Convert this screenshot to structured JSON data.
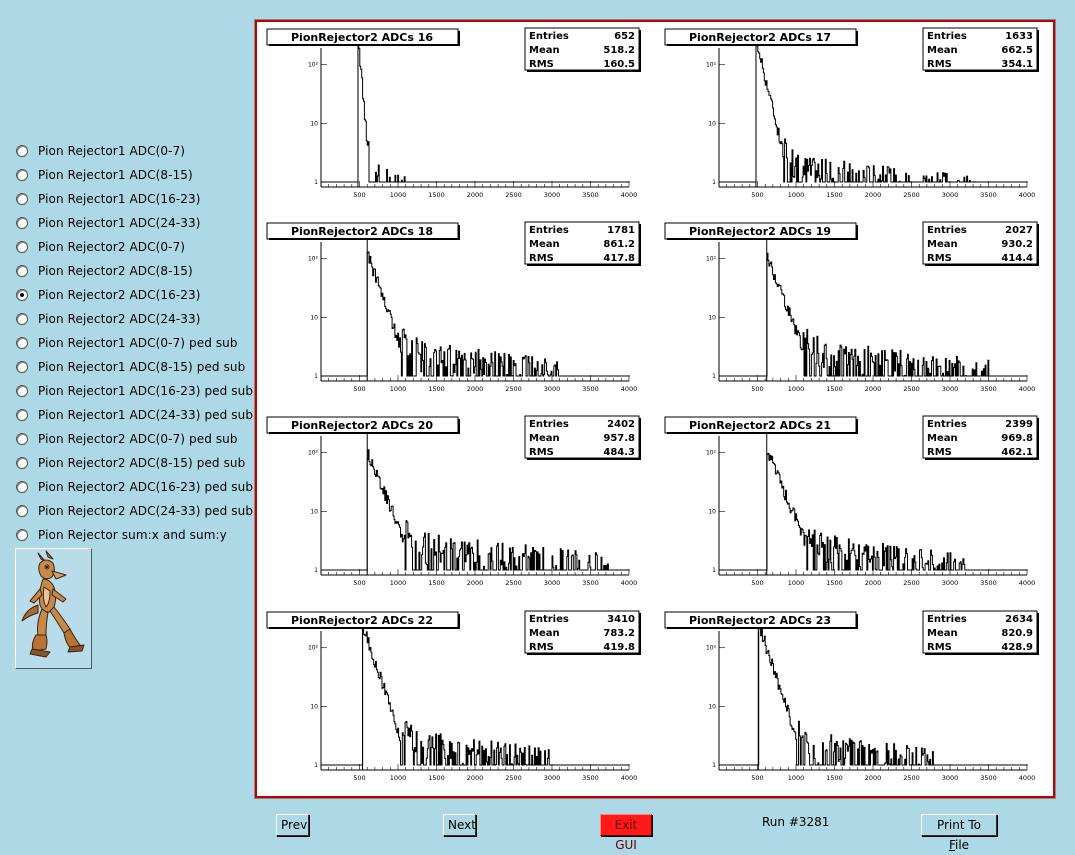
{
  "radio_options": [
    {
      "label": "Pion Rejector1 ADC(0-7)",
      "checked": false
    },
    {
      "label": "Pion Rejector1 ADC(8-15)",
      "checked": false
    },
    {
      "label": "Pion Rejector1 ADC(16-23)",
      "checked": false
    },
    {
      "label": "Pion Rejector1 ADC(24-33)",
      "checked": false
    },
    {
      "label": "Pion Rejector2 ADC(0-7)",
      "checked": false
    },
    {
      "label": "Pion Rejector2 ADC(8-15)",
      "checked": false
    },
    {
      "label": "Pion Rejector2 ADC(16-23)",
      "checked": true
    },
    {
      "label": "Pion Rejector2 ADC(24-33)",
      "checked": false
    },
    {
      "label": "Pion Rejector1 ADC(0-7) ped sub",
      "checked": false
    },
    {
      "label": "Pion Rejector1 ADC(8-15) ped sub",
      "checked": false
    },
    {
      "label": "Pion Rejector1 ADC(16-23) ped sub",
      "checked": false
    },
    {
      "label": "Pion Rejector1 ADC(24-33) ped sub",
      "checked": false
    },
    {
      "label": "Pion Rejector2 ADC(0-7) ped sub",
      "checked": false
    },
    {
      "label": "Pion Rejector2 ADC(8-15) ped sub",
      "checked": false
    },
    {
      "label": "Pion Rejector2 ADC(16-23) ped sub",
      "checked": false
    },
    {
      "label": "Pion Rejector2 ADC(24-33) ped sub",
      "checked": false
    },
    {
      "label": "Pion Rejector sum:x and sum:y",
      "checked": false
    }
  ],
  "buttons": {
    "prev": "Prev",
    "next": "Next",
    "exit": "Exit GUI",
    "print_pre": "Print To ",
    "print_ul": "F",
    "print_post": "ile"
  },
  "run_label": "Run #3281",
  "stats_labels": {
    "entries": "Entries",
    "mean": "Mean",
    "rms": "RMS"
  },
  "chart_data": [
    {
      "type": "histogram",
      "title": "PionRejector2 ADCs 16",
      "entries": "652",
      "mean": "518.2",
      "rms": "160.5",
      "threshold": 480,
      "xlim": [
        0,
        4000
      ],
      "y_log": true,
      "xticks": [
        "500",
        "1000",
        "1500",
        "2000",
        "2500",
        "3000",
        "3500",
        "4000"
      ],
      "yticks": [
        "1",
        "10",
        "10²"
      ],
      "peak": 240,
      "decay": 30,
      "tail_end": 1100,
      "tail_level": 2,
      "seed": 16
    },
    {
      "type": "histogram",
      "title": "PionRejector2 ADCs 17",
      "entries": "1633",
      "mean": "662.5",
      "rms": "354.1",
      "threshold": 480,
      "xlim": [
        0,
        4000
      ],
      "y_log": true,
      "xticks": [
        "500",
        "1000",
        "1500",
        "2000",
        "2500",
        "3000",
        "3500",
        "4000"
      ],
      "yticks": [
        "1",
        "10",
        "10²"
      ],
      "peak": 260,
      "decay": 80,
      "tail_end": 3400,
      "tail_level": 2,
      "seed": 17
    },
    {
      "type": "histogram",
      "title": "PionRejector2 ADCs 18",
      "entries": "1781",
      "mean": "861.2",
      "rms": "417.8",
      "threshold": 600,
      "xlim": [
        0,
        4000
      ],
      "y_log": true,
      "xticks": [
        "500",
        "1000",
        "1500",
        "2000",
        "2500",
        "3000",
        "3500",
        "4000"
      ],
      "yticks": [
        "1",
        "10",
        "10²"
      ],
      "peak": 120,
      "decay": 120,
      "tail_end": 3100,
      "tail_level": 3,
      "seed": 18
    },
    {
      "type": "histogram",
      "title": "PionRejector2 ADCs 19",
      "entries": "2027",
      "mean": "930.2",
      "rms": "414.4",
      "threshold": 620,
      "xlim": [
        0,
        4000
      ],
      "y_log": true,
      "xticks": [
        "500",
        "1000",
        "1500",
        "2000",
        "2500",
        "3000",
        "3500",
        "4000"
      ],
      "yticks": [
        "1",
        "10",
        "10²"
      ],
      "peak": 110,
      "decay": 130,
      "tail_end": 3500,
      "tail_level": 3,
      "seed": 19
    },
    {
      "type": "histogram",
      "title": "PionRejector2 ADCs 20",
      "entries": "2402",
      "mean": "957.8",
      "rms": "484.3",
      "threshold": 600,
      "xlim": [
        0,
        4000
      ],
      "y_log": true,
      "xticks": [
        "500",
        "1000",
        "1500",
        "2000",
        "2500",
        "3000",
        "3500",
        "4000"
      ],
      "yticks": [
        "1",
        "10",
        "10²"
      ],
      "peak": 100,
      "decay": 140,
      "tail_end": 3800,
      "tail_level": 3,
      "seed": 20
    },
    {
      "type": "histogram",
      "title": "PionRejector2 ADCs 21",
      "entries": "2399",
      "mean": "969.8",
      "rms": "462.1",
      "threshold": 620,
      "xlim": [
        0,
        4000
      ],
      "y_log": true,
      "xticks": [
        "500",
        "1000",
        "1500",
        "2000",
        "2500",
        "3000",
        "3500",
        "4000"
      ],
      "yticks": [
        "1",
        "10",
        "10²"
      ],
      "peak": 110,
      "decay": 140,
      "tail_end": 3200,
      "tail_level": 3,
      "seed": 21
    },
    {
      "type": "histogram",
      "title": "PionRejector2 ADCs 22",
      "entries": "3410",
      "mean": "783.2",
      "rms": "419.8",
      "threshold": 540,
      "xlim": [
        0,
        4000
      ],
      "y_log": true,
      "xticks": [
        "500",
        "1000",
        "1500",
        "2000",
        "2500",
        "3000",
        "3500",
        "4000"
      ],
      "yticks": [
        "1",
        "10",
        "10²"
      ],
      "peak": 250,
      "decay": 110,
      "tail_end": 3000,
      "tail_level": 3,
      "seed": 22
    },
    {
      "type": "histogram",
      "title": "PionRejector2 ADCs 23",
      "entries": "2634",
      "mean": "820.9",
      "rms": "428.9",
      "threshold": 510,
      "xlim": [
        0,
        4000
      ],
      "y_log": true,
      "xticks": [
        "500",
        "1000",
        "1500",
        "2000",
        "2500",
        "3000",
        "3500",
        "4000"
      ],
      "yticks": [
        "1",
        "10",
        "10²"
      ],
      "peak": 260,
      "decay": 110,
      "tail_end": 2800,
      "tail_level": 3,
      "seed": 23
    }
  ]
}
